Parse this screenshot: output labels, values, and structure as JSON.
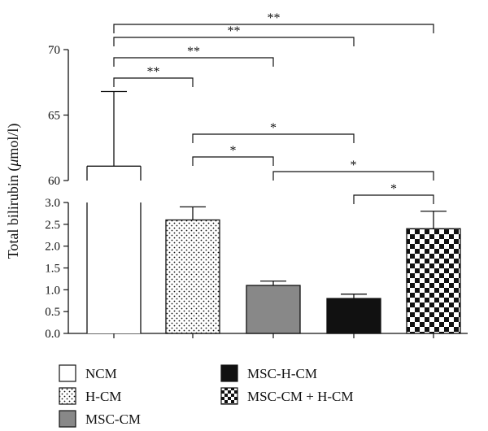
{
  "chart_data": {
    "type": "bar",
    "ylabel_prefix": "Total bilirubin (",
    "ylabel_mu": "μ",
    "ylabel_suffix": "mol/l)",
    "broken_axis": true,
    "ylim_lower": [
      0,
      3.0
    ],
    "ylim_upper": [
      60,
      70
    ],
    "yticks_lower": [
      "0.0",
      "0.5",
      "1.0",
      "1.5",
      "2.0",
      "2.5",
      "3.0"
    ],
    "yticks_upper": [
      "60",
      "65",
      "70"
    ],
    "categories": [
      "NCM",
      "H-CM",
      "MSC-CM",
      "MSC-H-CM",
      "MSC-CM + H-CM"
    ],
    "values": [
      61.1,
      2.6,
      1.1,
      0.8,
      2.4
    ],
    "error": [
      5.7,
      0.3,
      0.1,
      0.1,
      0.4
    ],
    "fills": [
      "white",
      "dots",
      "gray",
      "black",
      "checker"
    ],
    "comparisons": [
      {
        "from": 0,
        "to": 4,
        "label": "**"
      },
      {
        "from": 0,
        "to": 3,
        "label": "**"
      },
      {
        "from": 0,
        "to": 2,
        "label": "**"
      },
      {
        "from": 0,
        "to": 1,
        "label": "**"
      },
      {
        "from": 1,
        "to": 3,
        "label": "*"
      },
      {
        "from": 1,
        "to": 2,
        "label": "*"
      },
      {
        "from": 2,
        "to": 4,
        "label": "*"
      },
      {
        "from": 3,
        "to": 4,
        "label": "*"
      }
    ],
    "legend": [
      {
        "label": "NCM",
        "fill": "white"
      },
      {
        "label": "H-CM",
        "fill": "dots"
      },
      {
        "label": "MSC-CM",
        "fill": "gray"
      },
      {
        "label": "MSC-H-CM",
        "fill": "black"
      },
      {
        "label": "MSC-CM + H-CM",
        "fill": "checker"
      }
    ]
  }
}
